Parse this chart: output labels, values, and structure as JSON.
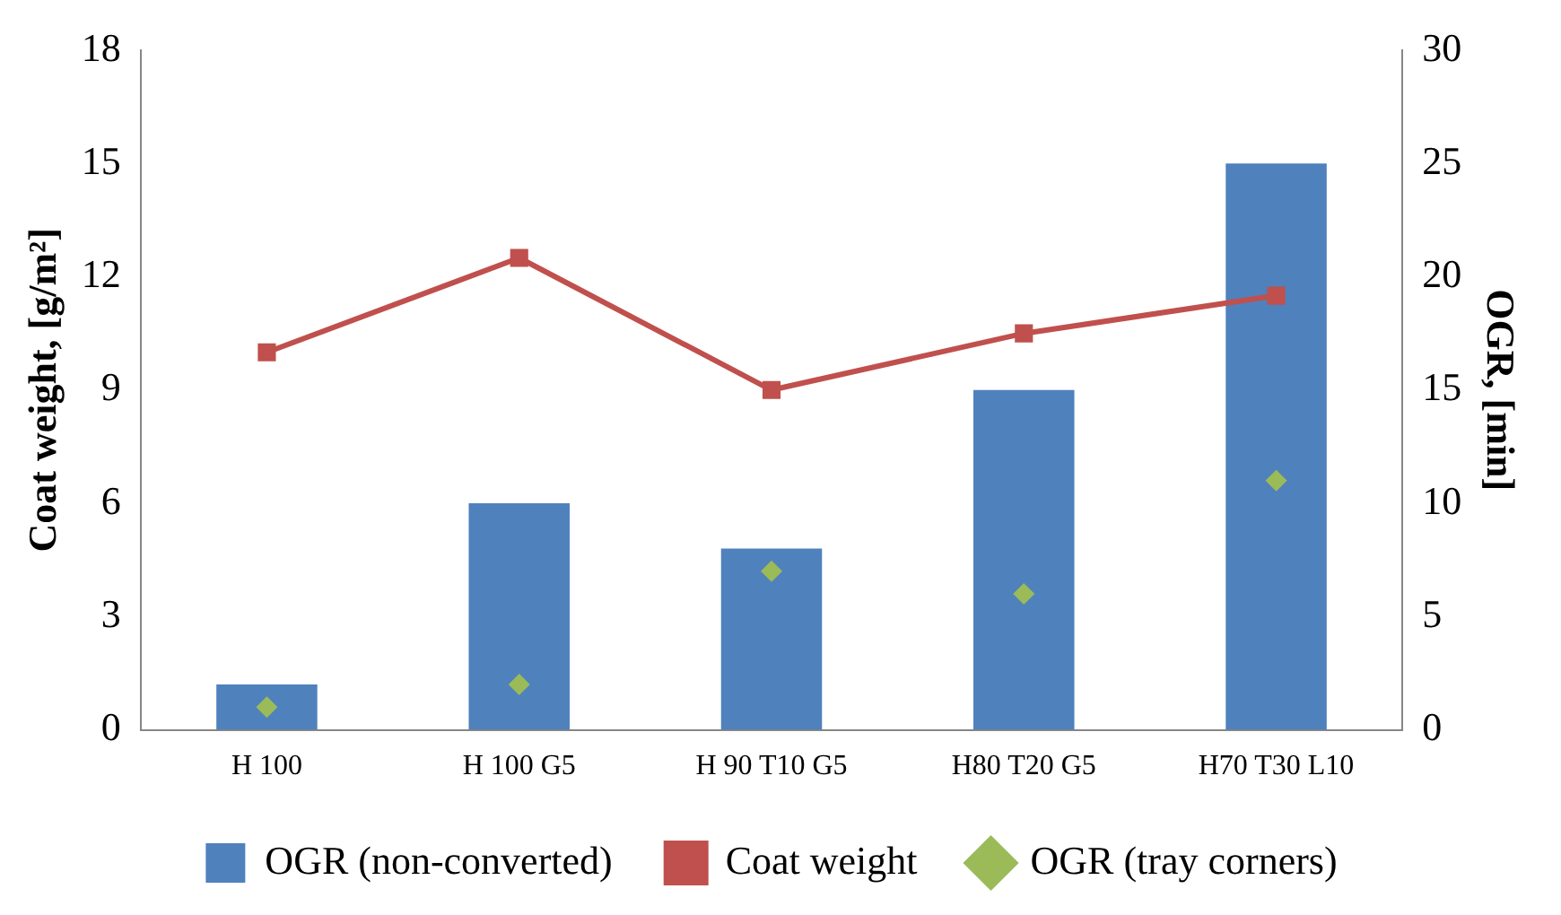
{
  "chart_data": {
    "type": "bar",
    "categories": [
      "H 100",
      "H 100 G5",
      "H 90 T10 G5",
      "H80 T20 G5",
      "H70 T30 L10"
    ],
    "ylabel": "Coat weight, [g/m²]",
    "y2label": "OGR, [min]",
    "ylim": [
      0,
      18
    ],
    "yticks": [
      0,
      3,
      6,
      9,
      12,
      15,
      18
    ],
    "y2lim": [
      0,
      30
    ],
    "y2ticks": [
      0,
      5,
      10,
      15,
      20,
      25,
      30
    ],
    "grid": false,
    "legend": "bottom",
    "series": [
      {
        "name": "OGR (non-converted)",
        "axis": "y2",
        "color": "#4f81bd",
        "values": [
          2,
          10,
          8,
          15,
          25
        ]
      },
      {
        "name": "Coat weight",
        "type": "line",
        "axis": "y",
        "color": "#c0504d",
        "marker": "square",
        "values": [
          10.0,
          12.5,
          9.0,
          10.5,
          11.5
        ]
      },
      {
        "name": "OGR (tray corners)",
        "type": "scatter",
        "axis": "y2",
        "color": "#9bbb59",
        "marker": "diamond",
        "values": [
          1,
          2,
          7,
          6,
          11
        ]
      }
    ]
  }
}
